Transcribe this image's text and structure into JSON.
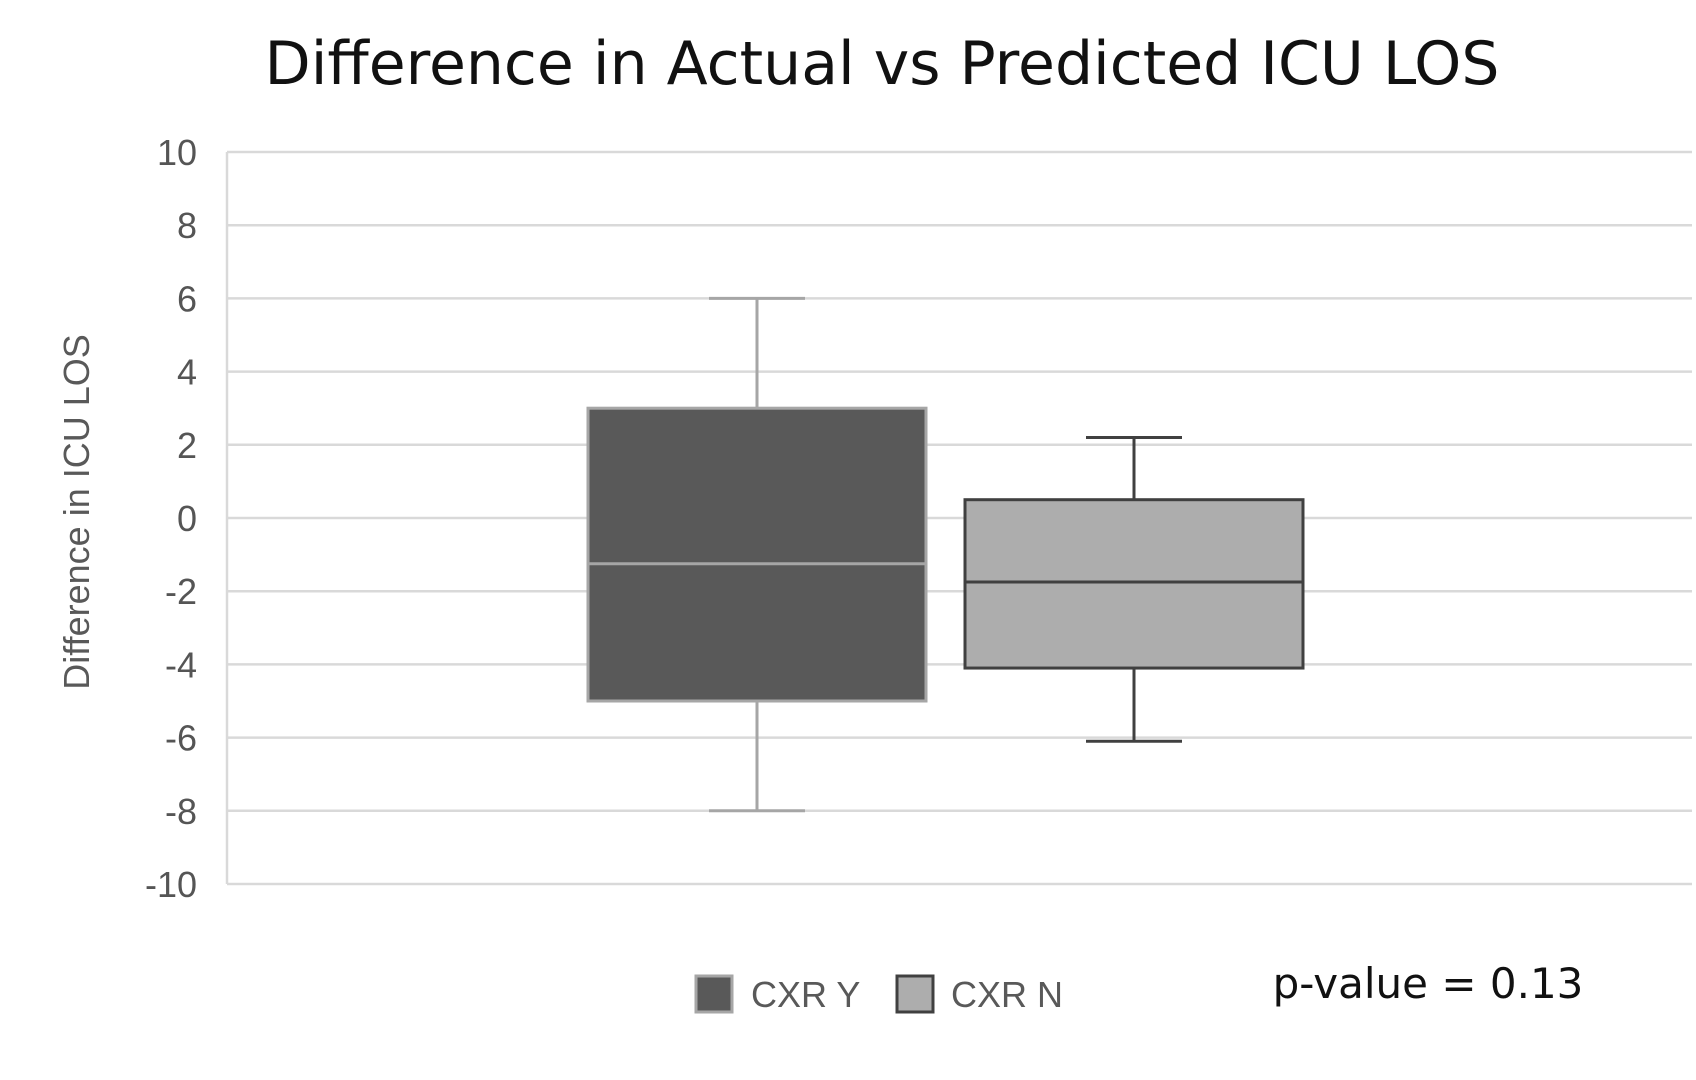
{
  "chart_data": {
    "type": "box",
    "title": "Difference in Actual vs Predicted ICU LOS",
    "xlabel": "",
    "ylabel": "Difference in ICU LOS",
    "ylim": [
      -10,
      10
    ],
    "yticks": [
      10,
      8,
      6,
      4,
      2,
      0,
      -2,
      -4,
      -6,
      -8,
      -10
    ],
    "ytick_labels": [
      "10",
      "8",
      "6",
      "4",
      "2",
      "0",
      "-2",
      "-4",
      "-6",
      "-8",
      "-10"
    ],
    "grid": true,
    "legend_position": "bottom",
    "series": [
      {
        "name": "CXR Y",
        "color": "#595959",
        "edge_color": "#a6a6a6",
        "whisker_color": "#a6a6a6",
        "median_color": "#a6a6a6",
        "min": -8,
        "q1": -5,
        "median": -1.25,
        "q3": 3,
        "max": 6
      },
      {
        "name": "CXR N",
        "color": "#adadad",
        "edge_color": "#404040",
        "whisker_color": "#404040",
        "median_color": "#404040",
        "min": -6.1,
        "q1": -4.1,
        "median": -1.75,
        "q3": 0.5,
        "max": 2.2
      }
    ],
    "annotation": "p-value = 0.13"
  }
}
